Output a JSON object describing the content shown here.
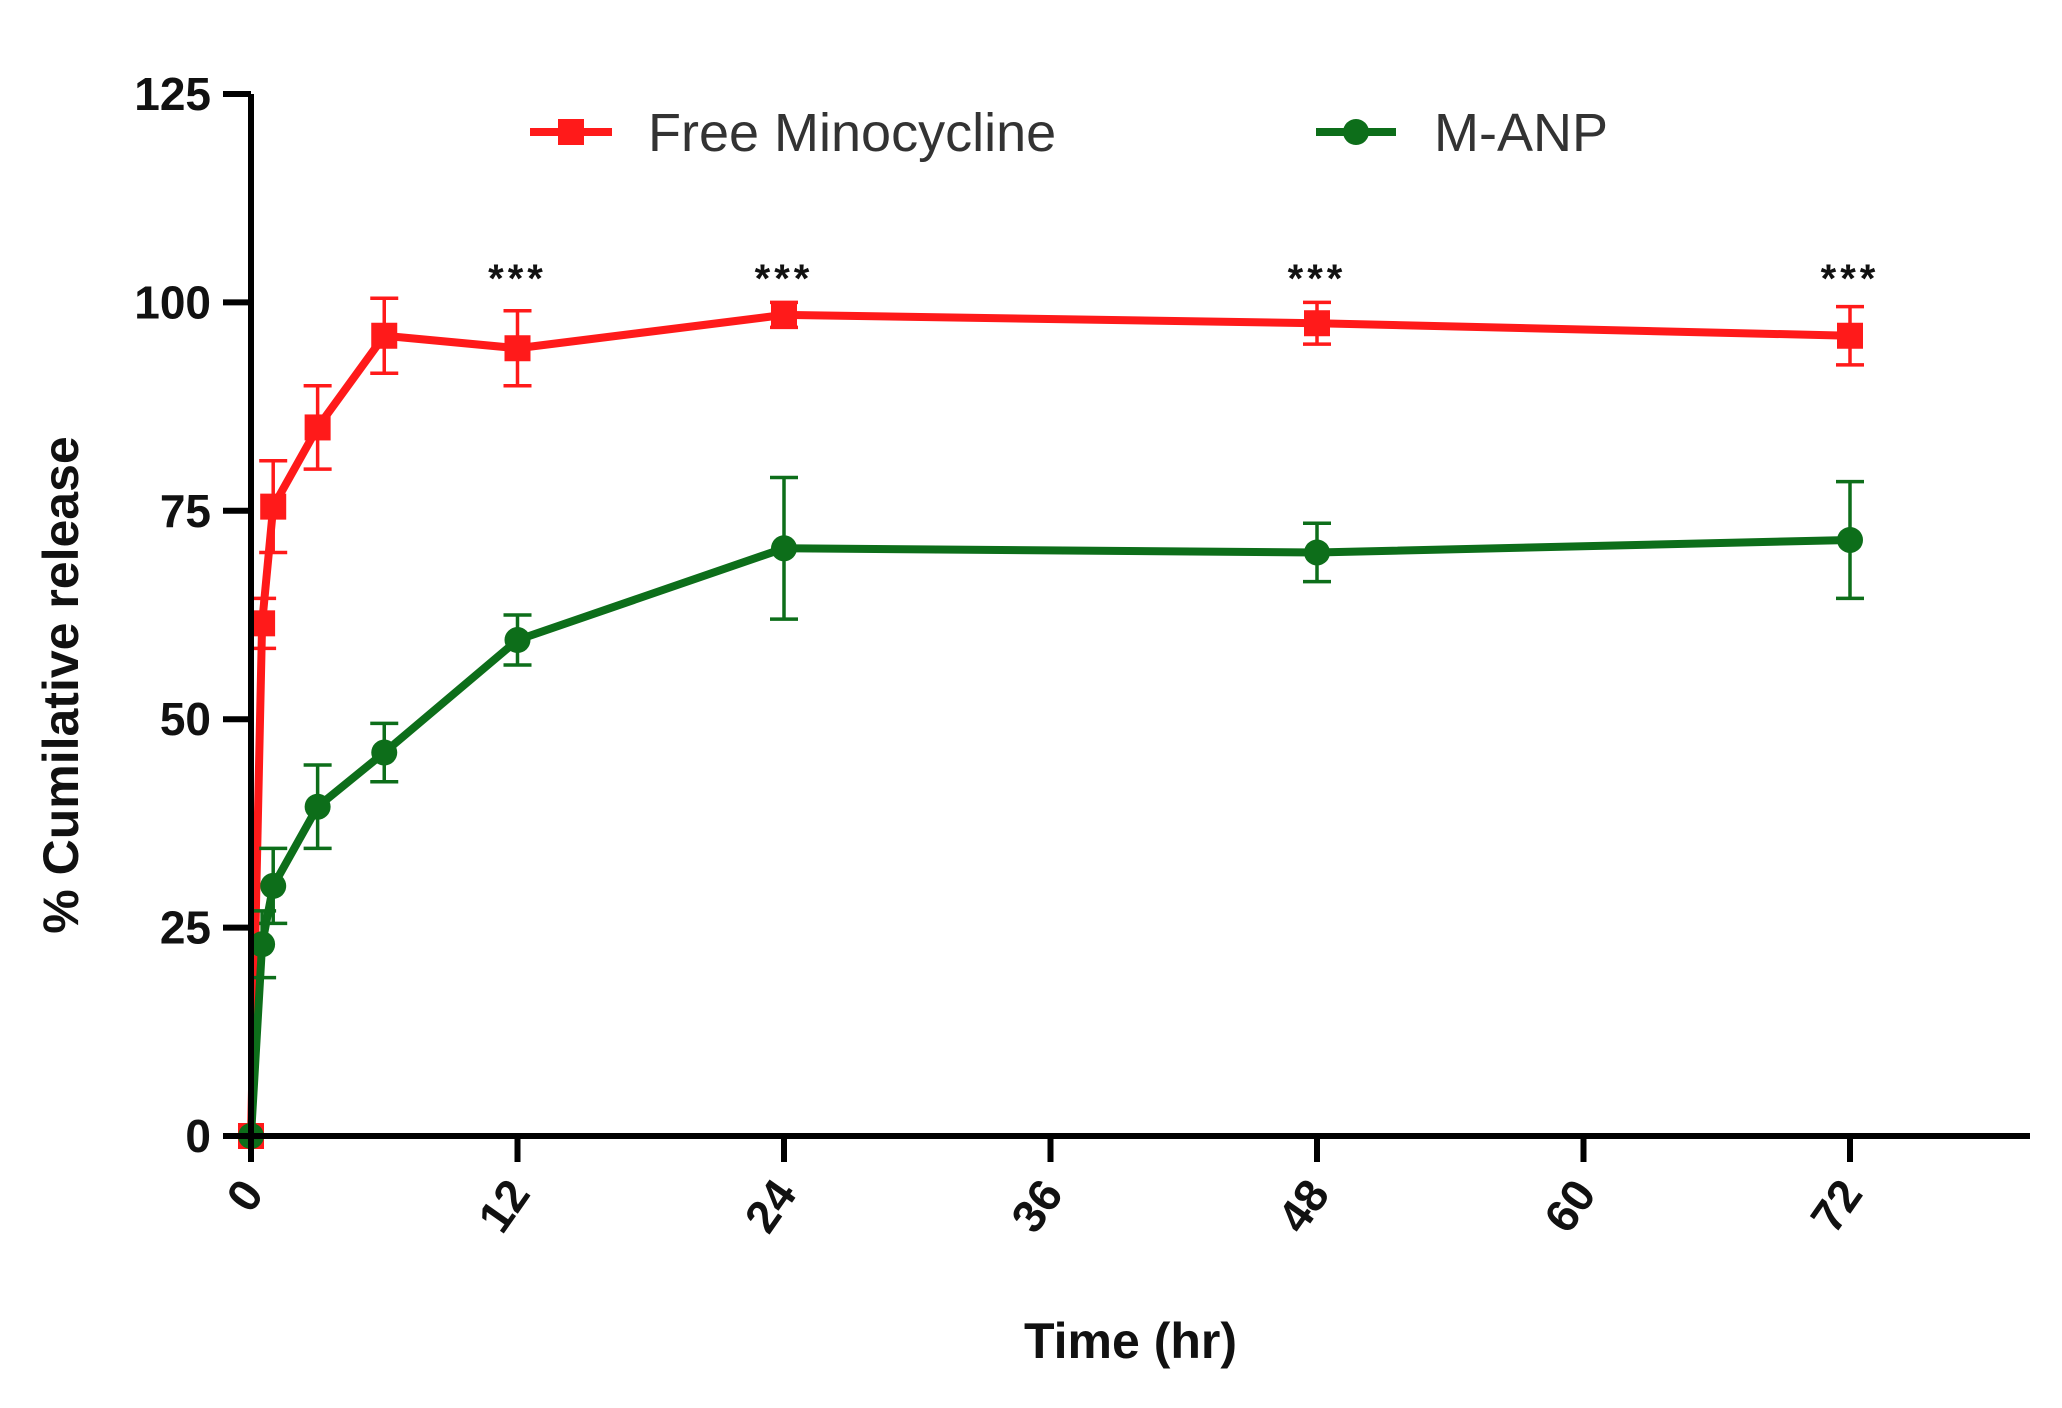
{
  "chart_data": {
    "type": "line",
    "title": "",
    "xlabel": "Time (hr)",
    "ylabel": "% Cumilative release",
    "xlim": [
      0,
      80
    ],
    "ylim": [
      0,
      125
    ],
    "xticks": [
      0,
      12,
      24,
      36,
      48,
      60,
      72
    ],
    "yticks": [
      0,
      25,
      50,
      75,
      100,
      125
    ],
    "grid": false,
    "legend_position": "top",
    "series": [
      {
        "name": "Free Minocycline",
        "color": "#ff1a1a",
        "marker": "square",
        "x": [
          0,
          0.5,
          1,
          3,
          6,
          12,
          24,
          48,
          72
        ],
        "y": [
          0,
          61.5,
          75.5,
          85,
          96,
          94.5,
          98.5,
          97.5,
          96
        ],
        "err": [
          0,
          3,
          5.5,
          5,
          4.5,
          4.5,
          1.5,
          2.5,
          3.5
        ]
      },
      {
        "name": "M-ANP",
        "color": "#0d6e1a",
        "marker": "circle",
        "x": [
          0,
          0.5,
          1,
          3,
          6,
          12,
          24,
          48,
          72
        ],
        "y": [
          0,
          23,
          30,
          39.5,
          46,
          59.5,
          70.5,
          70,
          71.5
        ],
        "err": [
          0,
          4,
          4.5,
          5,
          3.5,
          3,
          8.5,
          3.5,
          7
        ]
      }
    ],
    "annotations": [
      {
        "x": 12,
        "label": "***"
      },
      {
        "x": 24,
        "label": "***"
      },
      {
        "x": 48,
        "label": "***"
      },
      {
        "x": 72,
        "label": "***"
      }
    ]
  }
}
